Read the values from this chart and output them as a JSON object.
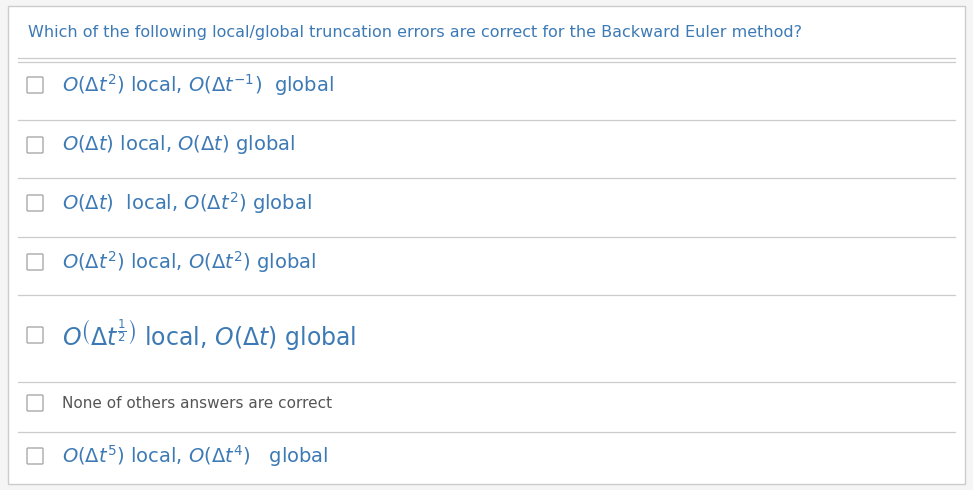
{
  "title": "Which of the following local/global truncation errors are correct for the Backward Euler method?",
  "title_color": "#3d7ab5",
  "background_color": "#f5f5f5",
  "panel_color": "#ffffff",
  "border_color": "#cccccc",
  "checkbox_color": "#aaaaaa",
  "text_color": "#3d7ab5",
  "plain_text_color": "#555555",
  "options": [
    {
      "label_math": "O\\left(\\Delta t^{2}\\right)",
      "sep": " local, ",
      "value_math": "O\\left(\\Delta t^{-1}\\right)",
      "end": "  global"
    },
    {
      "label_math": "O\\left(\\Delta t\\right)",
      "sep": " local, ",
      "value_math": "O\\left(\\Delta t\\right)",
      "end": " global"
    },
    {
      "label_math": "O\\left(\\Delta t\\right)",
      "sep": "  local, ",
      "value_math": "O\\left(\\Delta t^{2}\\right)",
      "end": " global"
    },
    {
      "label_math": "O\\left(\\Delta t^{2}\\right)",
      "sep": " local, ",
      "value_math": "O\\left(\\Delta t^{2}\\right)",
      "end": " global"
    },
    {
      "big": true,
      "label_math": "O\\left(\\Delta t^{\\frac{1}{2}}\\right)",
      "sep": " local, ",
      "value_math": "O\\left(\\Delta t\\right)",
      "end": " global"
    },
    {
      "plain": "None of others answers are correct"
    },
    {
      "label_math": "O\\left(\\Delta t^{5}\\right)",
      "sep": " local, ",
      "value_math": "O\\left(\\Delta t^{4}\\right)",
      "end": "   global"
    }
  ],
  "figsize": [
    9.73,
    4.9
  ],
  "dpi": 100
}
